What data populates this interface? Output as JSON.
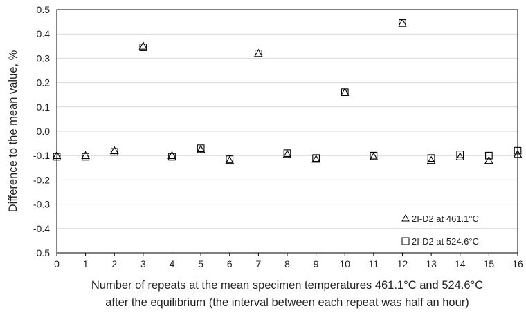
{
  "chart_data": {
    "type": "scatter",
    "xlabel_line1": "Number of repeats at the mean specimen temperatures 461.1°C and 524.6°C",
    "xlabel_line2": "after the equilibrium (the interval between each repeat was half an hour)",
    "ylabel": "Difference to the mean value, %",
    "xlim": [
      0,
      16
    ],
    "ylim": [
      -0.5,
      0.5
    ],
    "x_ticks": [
      0,
      1,
      2,
      3,
      4,
      5,
      6,
      7,
      8,
      9,
      10,
      11,
      12,
      13,
      14,
      15,
      16
    ],
    "y_ticks": [
      "-0.5",
      "-0.4",
      "-0.3",
      "-0.2",
      "-0.1",
      "0.0",
      "0.1",
      "0.2",
      "0.3",
      "0.4",
      "0.5"
    ],
    "grid": true,
    "legend_position": "bottom-right",
    "series": [
      {
        "name": "2I-D2 at 461.1°C",
        "marker": "triangle",
        "x": [
          0,
          1,
          2,
          3,
          4,
          5,
          6,
          7,
          8,
          9,
          10,
          11,
          12,
          13,
          14,
          15,
          16
        ],
        "y": [
          -0.1,
          -0.1,
          -0.08,
          0.35,
          -0.1,
          -0.075,
          -0.12,
          0.32,
          -0.095,
          -0.115,
          0.16,
          -0.105,
          0.445,
          -0.12,
          -0.105,
          -0.12,
          -0.095
        ]
      },
      {
        "name": "2I-D2 at 524.6°C",
        "marker": "square",
        "x": [
          0,
          1,
          2,
          3,
          4,
          5,
          6,
          7,
          8,
          9,
          10,
          11,
          12,
          13,
          14,
          15,
          16
        ],
        "y": [
          -0.105,
          -0.105,
          -0.085,
          0.345,
          -0.105,
          -0.07,
          -0.115,
          0.32,
          -0.09,
          -0.11,
          0.16,
          -0.1,
          0.445,
          -0.11,
          -0.095,
          -0.1,
          -0.08
        ]
      }
    ]
  }
}
